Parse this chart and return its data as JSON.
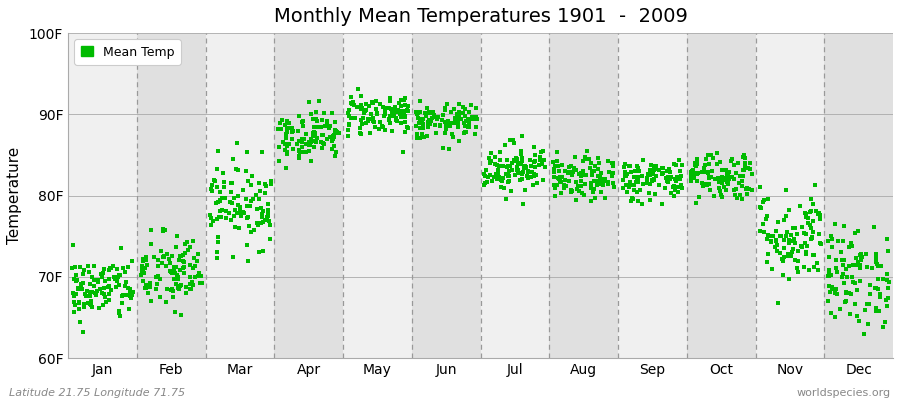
{
  "title": "Monthly Mean Temperatures 1901  -  2009",
  "ylabel": "Temperature",
  "ylim": [
    60,
    100
  ],
  "yticks": [
    60,
    70,
    80,
    90,
    100
  ],
  "ytick_labels": [
    "60F",
    "70F",
    "80F",
    "90F",
    "100F"
  ],
  "months": [
    "Jan",
    "Feb",
    "Mar",
    "Apr",
    "May",
    "Jun",
    "Jul",
    "Aug",
    "Sep",
    "Oct",
    "Nov",
    "Dec"
  ],
  "month_means": [
    68.5,
    70.5,
    79.0,
    87.5,
    90.0,
    89.0,
    83.5,
    82.0,
    82.0,
    82.5,
    75.0,
    70.0
  ],
  "month_ranges": [
    [
      64,
      73
    ],
    [
      65,
      76
    ],
    [
      74,
      86
    ],
    [
      84,
      91
    ],
    [
      87,
      93
    ],
    [
      86,
      91
    ],
    [
      80,
      87
    ],
    [
      79,
      85
    ],
    [
      79,
      85
    ],
    [
      79,
      86
    ],
    [
      68,
      81
    ],
    [
      65,
      79
    ]
  ],
  "n_years": 109,
  "dot_color": "#00bb00",
  "dot_size": 7,
  "bg_light": "#f0f0f0",
  "bg_dark": "#e0e0e0",
  "figure_background": "#ffffff",
  "legend_label": "Mean Temp",
  "footer_left": "Latitude 21.75 Longitude 71.75",
  "footer_right": "worldspecies.org",
  "vline_color": "#999999",
  "seed": 42
}
